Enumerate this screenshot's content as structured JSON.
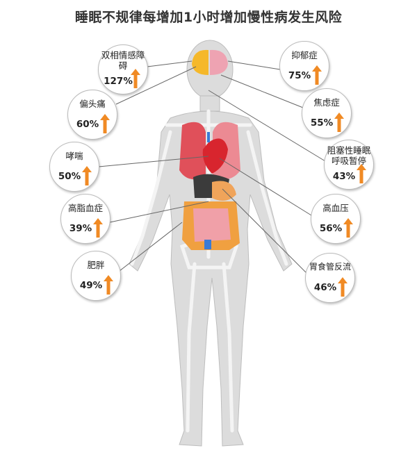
{
  "title": "睡眠不规律每增加1小时增加慢性病发生风险",
  "colors": {
    "arrow": "#f08a24",
    "body": "#d9d9d9",
    "bone": "#f2f2f2",
    "lung": "#e0505a",
    "heart": "#d8252e",
    "brain_left": "#f5b82a",
    "brain_right": "#eea3b2",
    "intestine": "#f0a0a8",
    "colon": "#f0a040"
  },
  "conditions": [
    {
      "name": "双相情感障碍",
      "value": "127%",
      "trend": "up-arrow-icon"
    },
    {
      "name": "偏头痛",
      "value": "60%",
      "trend": "up-arrow-icon"
    },
    {
      "name": "哮喘",
      "value": "50%",
      "trend": "up-arrow-icon"
    },
    {
      "name": "高脂血症",
      "value": "39%",
      "trend": "up-arrow-icon"
    },
    {
      "name": "肥胖",
      "value": "49%",
      "trend": "up-arrow-icon"
    },
    {
      "name": "抑郁症",
      "value": "75%",
      "trend": "up-arrow-icon"
    },
    {
      "name": "焦虑症",
      "value": "55%",
      "trend": "up-arrow-icon"
    },
    {
      "name": "阻塞性睡眠呼吸暂停",
      "value": "43%",
      "trend": "up-arrow-icon"
    },
    {
      "name": "高血压",
      "value": "56%",
      "trend": "up-arrow-icon"
    },
    {
      "name": "胃食管反流",
      "value": "46%",
      "trend": "up-arrow-icon"
    }
  ]
}
